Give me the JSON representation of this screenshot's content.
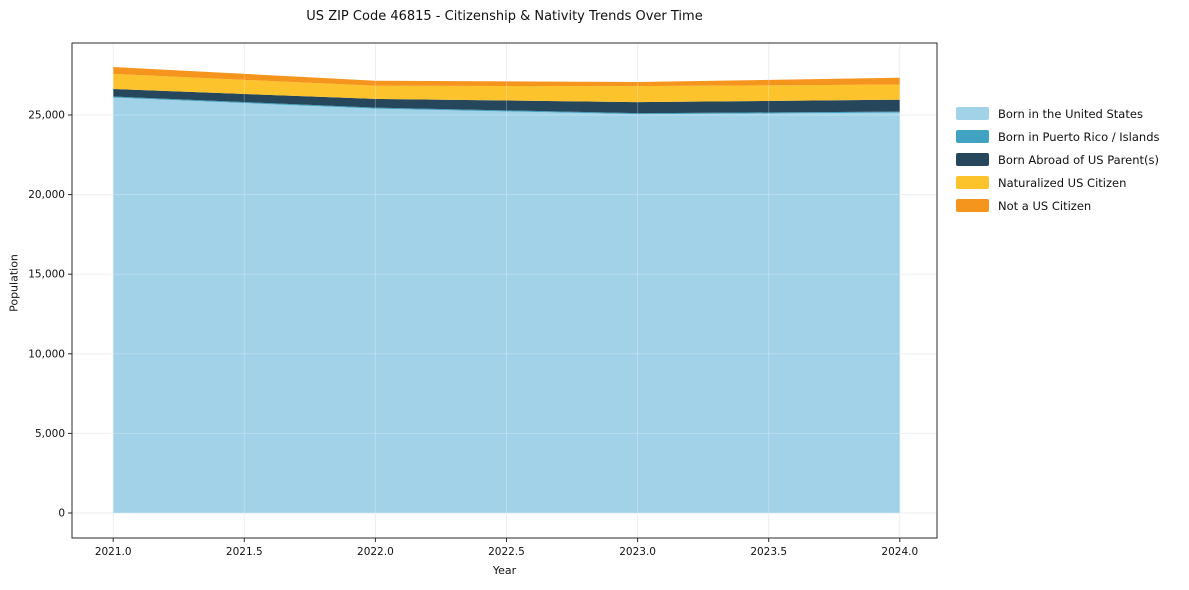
{
  "figure": {
    "background_color": "#ffffff",
    "spine_color": "#2b2b2b",
    "grid_color": "#e9e9e9",
    "text_color": "#111111"
  },
  "chart_data": {
    "type": "area",
    "stacked": true,
    "title": "US ZIP Code 46815 - Citizenship & Nativity Trends Over Time",
    "xlabel": "Year",
    "ylabel": "Population",
    "x": [
      2021,
      2022,
      2023,
      2024
    ],
    "series": [
      {
        "name": "Born in the United States",
        "color": "#a2d2e8",
        "values": [
          26100,
          25400,
          25050,
          25150
        ]
      },
      {
        "name": "Born in Puerto Rico / Islands",
        "color": "#41a2c1",
        "values": [
          60,
          60,
          60,
          60
        ]
      },
      {
        "name": "Born Abroad of US Parent(s)",
        "color": "#26475b",
        "values": [
          470,
          550,
          700,
          750
        ]
      },
      {
        "name": "Naturalized US Citizen",
        "color": "#fcc32d",
        "values": [
          950,
          820,
          1000,
          950
        ]
      },
      {
        "name": "Not a US Citizen",
        "color": "#f6951e",
        "values": [
          430,
          320,
          260,
          430
        ]
      }
    ],
    "totals": [
      28010,
      27150,
      27070,
      27340
    ],
    "xlim": [
      2020.843,
      2024.142
    ],
    "ylim": [
      -1570,
      29520
    ],
    "xticks": {
      "values": [
        2021.0,
        2021.5,
        2022.0,
        2022.5,
        2023.0,
        2023.5,
        2024.0
      ],
      "labels": [
        "2021.0",
        "2021.5",
        "2022.0",
        "2022.5",
        "2023.0",
        "2023.5",
        "2024.0"
      ]
    },
    "yticks": {
      "values": [
        0,
        5000,
        10000,
        15000,
        20000,
        25000
      ],
      "labels": [
        "0",
        "5,000",
        "10,000",
        "15,000",
        "20,000",
        "25,000"
      ]
    },
    "grid": true,
    "legend_position": "right-outside"
  }
}
